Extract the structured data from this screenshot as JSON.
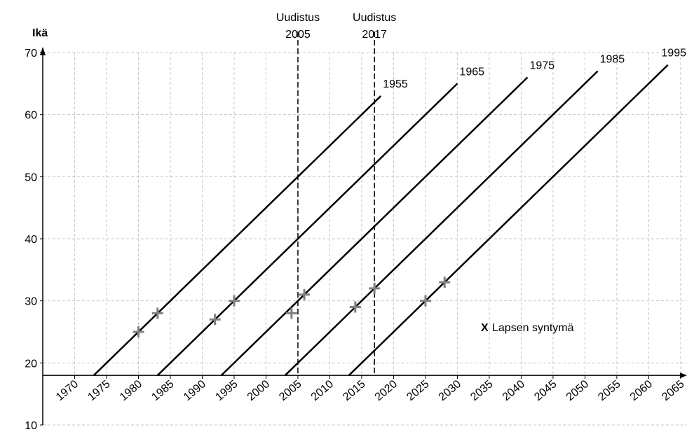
{
  "chart_data": {
    "type": "line",
    "y_label": "Ikä",
    "xlim": [
      1965,
      2066
    ],
    "ylim": [
      10,
      70
    ],
    "xticks": [
      1970,
      1975,
      1980,
      1985,
      1990,
      1995,
      2000,
      2005,
      2010,
      2015,
      2020,
      2025,
      2030,
      2035,
      2040,
      2045,
      2050,
      2055,
      2060,
      2065
    ],
    "yticks": [
      10,
      20,
      30,
      40,
      50,
      60,
      70
    ],
    "x_axis_at": 18,
    "grid": true,
    "series": [
      {
        "name": "1955",
        "color": "#000000",
        "x": [
          1973,
          2018
        ],
        "values": [
          18,
          63
        ]
      },
      {
        "name": "1965",
        "color": "#000000",
        "x": [
          1983,
          2030
        ],
        "values": [
          18,
          65
        ]
      },
      {
        "name": "1975",
        "color": "#000000",
        "x": [
          1993,
          2041
        ],
        "values": [
          18,
          66
        ]
      },
      {
        "name": "1985",
        "color": "#000000",
        "x": [
          2003,
          2052
        ],
        "values": [
          18,
          67
        ]
      },
      {
        "name": "1995",
        "color": "#000000",
        "x": [
          2013,
          2063
        ],
        "values": [
          18,
          68
        ]
      }
    ],
    "points": {
      "name": "Lapsen syntymä",
      "symbol": "X",
      "color": "#808080",
      "x": [
        1980,
        1983,
        1992,
        1995,
        2004,
        2006,
        2014,
        2017,
        2025,
        2028
      ],
      "values": [
        25,
        28,
        27,
        30,
        28,
        31,
        29,
        32,
        30,
        33
      ]
    },
    "reference_lines": [
      {
        "x": 2005,
        "label": [
          "Uudistus",
          "2005"
        ]
      },
      {
        "x": 2017,
        "label": [
          "Uudistus",
          "2017"
        ]
      }
    ]
  }
}
